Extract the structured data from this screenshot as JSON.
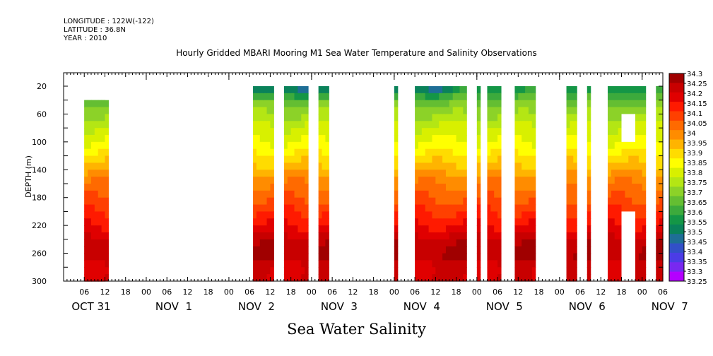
{
  "header": {
    "longitude": "LONGITUDE : 122W(-122)",
    "latitude": "LATITUDE : 36.8N",
    "year": "YEAR : 2010"
  },
  "chart_data": {
    "type": "heatmap",
    "title": "Hourly Gridded MBARI Mooring M1 Sea Water Temperature and Salinity Observations",
    "xlabel": "Sea Water Salinity",
    "ylabel": "DEPTH (m)",
    "ylim": [
      300,
      0
    ],
    "y_ticks": [
      "20",
      "60",
      "100",
      "140",
      "180",
      "220",
      "260",
      "300"
    ],
    "x_hour_labels": [
      "06",
      "12",
      "18",
      "00",
      "06",
      "12",
      "18",
      "00",
      "06",
      "12",
      "18",
      "00",
      "06",
      "12",
      "18",
      "00",
      "06",
      "12",
      "18",
      "00",
      "06",
      "12",
      "18",
      "00",
      "06",
      "12",
      "18",
      "00",
      "06",
      "12",
      "18",
      "00",
      "06"
    ],
    "date_labels": [
      "OCT 31",
      "NOV  1",
      "NOV  2",
      "NOV  3",
      "NOV  4",
      "NOV  5",
      "NOV  6",
      "NOV  7"
    ],
    "colorbar_levels": [
      "34.3",
      "34.25",
      "34.2",
      "34.15",
      "34.1",
      "34.05",
      "34",
      "33.95",
      "33.9",
      "33.85",
      "33.8",
      "33.75",
      "33.7",
      "33.65",
      "33.6",
      "33.55",
      "33.5",
      "33.45",
      "33.4",
      "33.35",
      "33.3",
      "33.25"
    ],
    "colorbar_colors": [
      "#a00000",
      "#c80000",
      "#e00000",
      "#ff1a00",
      "#ff4000",
      "#ff6a00",
      "#ff8c00",
      "#ffb400",
      "#ffdc00",
      "#ffff00",
      "#d8f000",
      "#b4e614",
      "#8cd228",
      "#64be32",
      "#3caa3c",
      "#149646",
      "#0a825a",
      "#1e6e96",
      "#3250c8",
      "#4b3ce6",
      "#7828f0",
      "#b400ff"
    ],
    "data_segments_hours": [
      [
        6,
        12
      ],
      [
        6,
        13
      ],
      [
        55,
        61
      ],
      [
        64,
        71
      ],
      [
        74,
        77
      ],
      [
        96,
        97
      ],
      [
        102,
        117
      ],
      [
        120,
        121
      ],
      [
        123,
        127
      ],
      [
        131,
        137
      ],
      [
        146,
        149
      ],
      [
        152,
        153
      ],
      [
        158,
        169
      ],
      [
        172,
        174
      ]
    ],
    "missing_block_hours": [
      [
        162,
        166
      ],
      [
        162,
        166
      ]
    ],
    "missing_block_depth_m": [
      [
        60,
        100
      ],
      [
        200,
        300
      ]
    ],
    "profile_depth_m": [
      20,
      40,
      60,
      80,
      100,
      120,
      140,
      160,
      180,
      200,
      220,
      240,
      260,
      280,
      300
    ],
    "profile_salinity": [
      33.5,
      33.62,
      33.7,
      33.76,
      33.8,
      33.86,
      33.93,
      34.0,
      34.04,
      34.1,
      34.15,
      34.22,
      34.26,
      34.2,
      34.2
    ],
    "surface_low_salinity_periods": [
      [
        55,
        61
      ],
      [
        64,
        71
      ],
      [
        74,
        77
      ],
      [
        96,
        97
      ],
      [
        102,
        112
      ]
    ]
  }
}
